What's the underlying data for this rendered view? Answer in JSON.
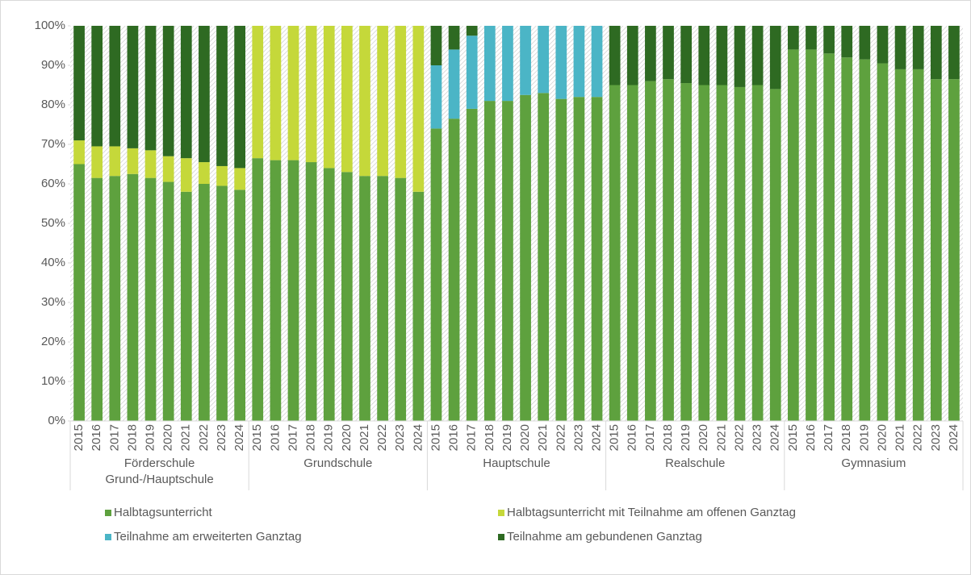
{
  "chart_data": {
    "type": "stacked_bar",
    "ylim": [
      0,
      100
    ],
    "yticks": [
      {
        "value": 0,
        "label": "0%"
      },
      {
        "value": 10,
        "label": "10%"
      },
      {
        "value": 20,
        "label": "20%"
      },
      {
        "value": 30,
        "label": "30%"
      },
      {
        "value": 40,
        "label": "40%"
      },
      {
        "value": 50,
        "label": "50%"
      },
      {
        "value": 60,
        "label": "60%"
      },
      {
        "value": 70,
        "label": "70%"
      },
      {
        "value": 80,
        "label": "80%"
      },
      {
        "value": 90,
        "label": "90%"
      },
      {
        "value": 100,
        "label": "100%"
      }
    ],
    "groups": [
      {
        "name": "Förderschule Grund-/Hauptschule",
        "categories": [
          "2015",
          "2016",
          "2017",
          "2018",
          "2019",
          "2020",
          "2021",
          "2022",
          "2023",
          "2024"
        ]
      },
      {
        "name": "Grundschule",
        "categories": [
          "2015",
          "2016",
          "2017",
          "2018",
          "2019",
          "2020",
          "2021",
          "2022",
          "2023",
          "2024"
        ]
      },
      {
        "name": "Hauptschule",
        "categories": [
          "2015",
          "2016",
          "2017",
          "2018",
          "2019",
          "2020",
          "2021",
          "2022",
          "2023",
          "2024"
        ]
      },
      {
        "name": "Realschule",
        "categories": [
          "2015",
          "2016",
          "2017",
          "2018",
          "2019",
          "2020",
          "2021",
          "2022",
          "2023",
          "2024"
        ]
      },
      {
        "name": "Gymnasium",
        "categories": [
          "2015",
          "2016",
          "2017",
          "2018",
          "2019",
          "2020",
          "2021",
          "2022",
          "2023",
          "2024"
        ]
      }
    ],
    "series": [
      {
        "name": "Halbtagsunterricht",
        "color": "#5ea13e",
        "values": [
          65,
          61.5,
          62,
          62.5,
          61.5,
          60.5,
          58,
          60,
          59.5,
          58.5,
          66.5,
          66,
          66,
          65.5,
          64,
          63,
          62,
          62,
          61.5,
          58,
          74,
          76.5,
          79,
          81,
          81,
          82.5,
          83,
          81.5,
          82,
          82,
          85,
          85,
          86,
          86.5,
          85.5,
          85,
          85,
          84.5,
          85,
          84,
          94,
          94,
          93,
          92,
          91.5,
          90.5,
          89,
          89,
          86.5,
          86.5
        ]
      },
      {
        "name": "Halbtagsunterricht mit Teilnahme am offenen Ganztag",
        "color": "#c5d83a",
        "values": [
          6,
          8,
          7.5,
          6.5,
          7,
          6.5,
          8.5,
          5.5,
          5,
          5.5,
          33.5,
          34,
          34,
          34.5,
          36,
          37,
          38,
          38,
          38.5,
          42,
          0,
          0,
          0,
          0,
          0,
          0,
          0,
          0,
          0,
          0,
          0,
          0,
          0,
          0,
          0,
          0,
          0,
          0,
          0,
          0,
          0,
          0,
          0,
          0,
          0,
          0,
          0,
          0,
          0,
          0
        ]
      },
      {
        "name": "Teilnahme am erweiterten Ganztag",
        "color": "#4bb5c6",
        "values": [
          0,
          0,
          0,
          0,
          0,
          0,
          0,
          0,
          0,
          0,
          0,
          0,
          0,
          0,
          0,
          0,
          0,
          0,
          0,
          0,
          16,
          17.5,
          18.5,
          19,
          19,
          17.5,
          17,
          18.5,
          18,
          18,
          0,
          0,
          0,
          0,
          0,
          0,
          0,
          0,
          0,
          0,
          0,
          0,
          0,
          0,
          0,
          0,
          0,
          0,
          0,
          0
        ]
      },
      {
        "name": "Teilnahme am gebundenen Ganztag",
        "color": "#2e6a22",
        "values": [
          29,
          30.5,
          30.5,
          31,
          31.5,
          33,
          33.5,
          34.5,
          35.5,
          36,
          0,
          0,
          0,
          0,
          0,
          0,
          0,
          0,
          0,
          0,
          10,
          6,
          2.5,
          0,
          0,
          0,
          0,
          0,
          0,
          0,
          15,
          15,
          14,
          13.5,
          14.5,
          15,
          15,
          15.5,
          15,
          16,
          6,
          6,
          7,
          8,
          8.5,
          9.5,
          11,
          11,
          13.5,
          13.5
        ]
      }
    ]
  }
}
